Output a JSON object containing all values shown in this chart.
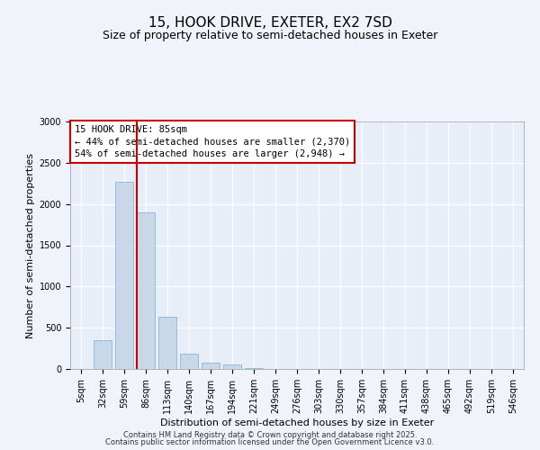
{
  "title": "15, HOOK DRIVE, EXETER, EX2 7SD",
  "subtitle": "Size of property relative to semi-detached houses in Exeter",
  "xlabel": "Distribution of semi-detached houses by size in Exeter",
  "ylabel": "Number of semi-detached properties",
  "footer1": "Contains HM Land Registry data © Crown copyright and database right 2025.",
  "footer2": "Contains public sector information licensed under the Open Government Licence v3.0.",
  "annotation_title": "15 HOOK DRIVE: 85sqm",
  "annotation_line2": "← 44% of semi-detached houses are smaller (2,370)",
  "annotation_line3": "54% of semi-detached houses are larger (2,948) →",
  "vline_x_index": 3,
  "bar_labels": [
    "5sqm",
    "32sqm",
    "59sqm",
    "86sqm",
    "113sqm",
    "140sqm",
    "167sqm",
    "194sqm",
    "221sqm",
    "249sqm",
    "276sqm",
    "303sqm",
    "330sqm",
    "357sqm",
    "384sqm",
    "411sqm",
    "438sqm",
    "465sqm",
    "492sqm",
    "519sqm",
    "546sqm"
  ],
  "bar_values": [
    5,
    350,
    2270,
    1900,
    630,
    185,
    80,
    50,
    15,
    5,
    5,
    2,
    0,
    0,
    0,
    0,
    0,
    0,
    0,
    0,
    0
  ],
  "bar_color": "#c8d8e8",
  "bar_edgecolor": "#7aace0",
  "vline_color": "#cc0000",
  "ylim": [
    0,
    3000
  ],
  "yticks": [
    0,
    500,
    1000,
    1500,
    2000,
    2500,
    3000
  ],
  "fig_background": "#f0f4fa",
  "ax_background": "#e8eef8",
  "grid_color": "#ffffff",
  "annotation_box_color": "#ffffff",
  "annotation_box_edgecolor": "#cc0000",
  "title_fontsize": 11,
  "subtitle_fontsize": 9,
  "xlabel_fontsize": 8,
  "ylabel_fontsize": 8,
  "tick_fontsize": 7,
  "annotation_fontsize": 7.5,
  "footer_fontsize": 6
}
